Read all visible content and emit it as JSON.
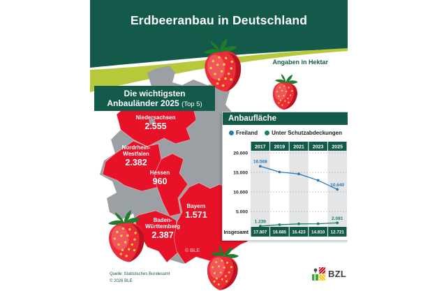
{
  "header": {
    "title": "Erdbeeranbau in Deutschland",
    "unit_note": "Angaben in Hektar"
  },
  "top5_box": {
    "line1": "Die wichtigsten",
    "line2": "Anbauländer 2025",
    "suffix": "(Top 5)"
  },
  "map": {
    "watermark": "© BLE",
    "states": [
      {
        "name": "Niedersachsen",
        "value": "2.555"
      },
      {
        "name": "Nordrhein-Westfalen",
        "value": "2.382"
      },
      {
        "name": "Hessen",
        "value": "960"
      },
      {
        "name": "Bayern",
        "value": "1.571"
      },
      {
        "name": "Baden-Württemberg",
        "value": "2.387"
      }
    ]
  },
  "chart_data": {
    "type": "line",
    "title": "Anbaufläche",
    "unit": "Hektar",
    "x": [
      "2017",
      "2019",
      "2021",
      "2023",
      "2025"
    ],
    "series": [
      {
        "name": "Freiland",
        "color": "#2878b5",
        "values": [
          16568,
          15085,
          14600,
          12960,
          10640
        ],
        "point_labels": [
          "16.568",
          "",
          "",
          "",
          "10.640"
        ]
      },
      {
        "name": "Unter Schutzabdeckungen",
        "color": "#158066",
        "values": [
          1239,
          1600,
          1823,
          1850,
          2081
        ],
        "point_labels": [
          "1.239",
          "",
          "",
          "",
          "2.081"
        ]
      }
    ],
    "totals_row": {
      "label": "Insgesamt",
      "values": [
        "17.807",
        "16.685",
        "16.423",
        "14.810",
        "12.721"
      ]
    },
    "ylim": [
      0,
      20000
    ],
    "yticks": [
      {
        "value": 20000,
        "label": "20.000"
      },
      {
        "value": 15000,
        "label": "15.000"
      },
      {
        "value": 10000,
        "label": "10.000"
      },
      {
        "value": 5000,
        "label": "5.000"
      }
    ],
    "grid": "dashed-horizontal",
    "legend_position": "top"
  },
  "footer": {
    "source_line1": "Quelle: Statistisches Bundesamt",
    "source_line2": "© 2026 BLE",
    "logo_text": "BZL"
  },
  "colors": {
    "dark_green": "#135a4a",
    "swoosh_green": "#b7c93a",
    "state_red": "#e81228",
    "state_gray": "#9aa0a4",
    "stripe_gray": "#e3e5e6"
  }
}
